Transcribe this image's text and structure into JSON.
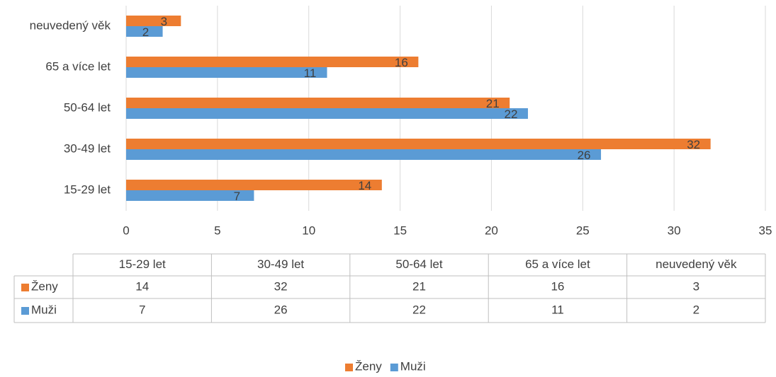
{
  "chart_data": {
    "type": "bar",
    "orientation": "horizontal",
    "categories": [
      "15-29 let",
      "30-49 let",
      "50-64 let",
      "65 a více let",
      "neuvedený věk"
    ],
    "series": [
      {
        "name": "Ženy",
        "color": "#ed7d31",
        "values": [
          14,
          32,
          21,
          16,
          3
        ]
      },
      {
        "name": "Muži",
        "color": "#5b9bd5",
        "values": [
          7,
          26,
          22,
          11,
          2
        ]
      }
    ],
    "xlim": [
      0,
      35
    ],
    "xticks": [
      0,
      5,
      10,
      15,
      20,
      25,
      30,
      35
    ],
    "grid": true,
    "data_labels": true,
    "data_table": true,
    "legend": "bottom"
  }
}
